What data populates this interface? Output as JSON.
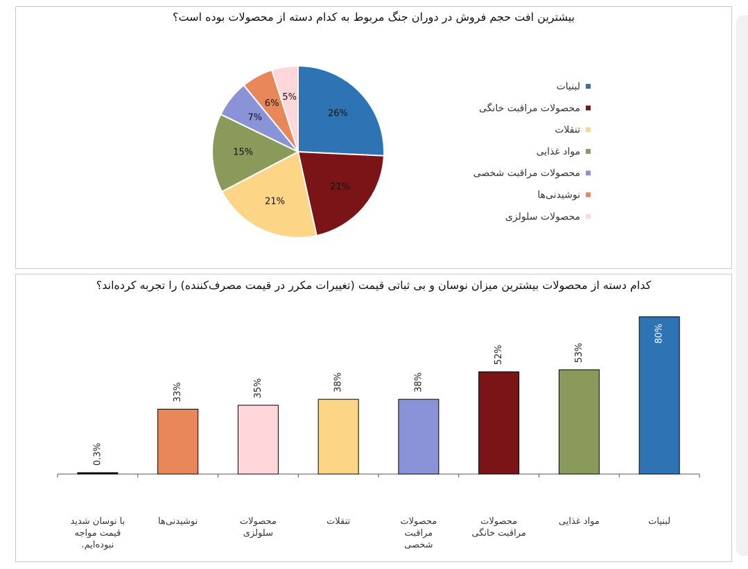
{
  "chart_data": [
    {
      "type": "pie",
      "title": "بیشترین افت حجم فروش در دوران جنگ مربوط به کدام دسته از محصولات بوده است؟",
      "legend_position": "right",
      "slices": [
        {
          "label": "لبنیات",
          "value": 26,
          "display": "26%",
          "color": "#2E74B5"
        },
        {
          "label": "محصولات مراقبت خانگی",
          "value": 21,
          "display": "21%",
          "color": "#7B1416"
        },
        {
          "label": "تنقلات",
          "value": 21,
          "display": "21%",
          "color": "#FCD587"
        },
        {
          "label": "مواد غذایی",
          "value": 15,
          "display": "15%",
          "color": "#8A9A5B"
        },
        {
          "label": "محصولات مراقبت شخصی",
          "value": 7,
          "display": "7%",
          "color": "#8B93D8"
        },
        {
          "label": "نوشیدنی‌ها",
          "value": 6,
          "display": "6%",
          "color": "#E8875A"
        },
        {
          "label": "محصولات سلولزی",
          "value": 5,
          "display": "5%",
          "color": "#FFD6D9"
        }
      ]
    },
    {
      "type": "bar",
      "title": "کدام دسته از محصولات بیشترین میزان نوسان و بی ثباتی قیمت (تغییرات مکرر در قیمت مصرف‌کننده) را تجربه کرده‌اند؟",
      "ylim": [
        0,
        80
      ],
      "grid": false,
      "bars": [
        {
          "label": "با نوسان شدید قیمت مواجه نبوده‌ایم.",
          "value": 0.3,
          "display": "0.3%",
          "color": "#000000"
        },
        {
          "label": "نوشیدنی‌ها",
          "value": 33,
          "display": "33%",
          "color": "#E8875A"
        },
        {
          "label": "محصولات سلولزی",
          "value": 35,
          "display": "35%",
          "color": "#FFD6D9"
        },
        {
          "label": "تنقلات",
          "value": 38,
          "display": "38%",
          "color": "#FCD587"
        },
        {
          "label": "محصولات مراقبت شخصی",
          "value": 38,
          "display": "38%",
          "color": "#8B93D8"
        },
        {
          "label": "محصولات مراقبت خانگی",
          "value": 52,
          "display": "52%",
          "color": "#7B1416"
        },
        {
          "label": "مواد غذایی",
          "value": 53,
          "display": "53%",
          "color": "#8A9A5B"
        },
        {
          "label": "لبنیات",
          "value": 80,
          "display": "80%",
          "color": "#2E74B5"
        }
      ]
    }
  ]
}
